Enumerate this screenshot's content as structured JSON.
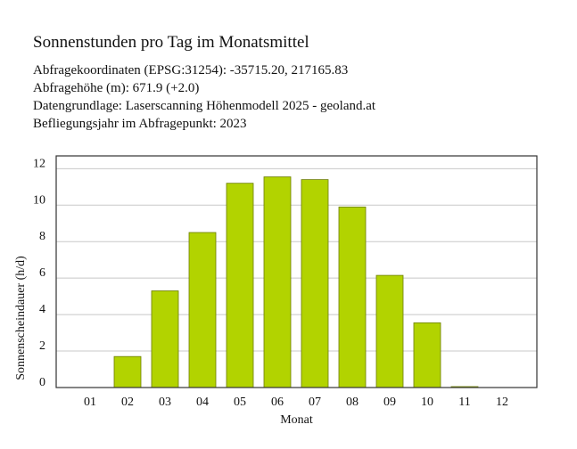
{
  "header": {
    "title": "Sonnenstunden pro Tag im Monatsmittel",
    "lines": [
      "Abfragekoordinaten (EPSG:31254): -35715.20, 217165.83",
      "Abfragehöhe (m): 671.9 (+2.0)",
      "Datengrundlage: Laserscanning Höhenmodell 2025 - geoland.at",
      "Befliegungsjahr im Abfragepunkt: 2023"
    ]
  },
  "chart_data": {
    "type": "bar",
    "title": "Sonnenstunden pro Tag im Monatsmittel",
    "xlabel": "Monat",
    "ylabel": "Sonnenscheindauer (h/d)",
    "categories": [
      "01",
      "02",
      "03",
      "04",
      "05",
      "06",
      "07",
      "08",
      "09",
      "10",
      "11",
      "12"
    ],
    "values": [
      0,
      1.7,
      5.3,
      8.5,
      11.2,
      11.55,
      11.4,
      9.9,
      6.15,
      3.55,
      0.05,
      0
    ],
    "yticks": [
      "0",
      "2",
      "4",
      "6",
      "8",
      "10",
      "12"
    ],
    "ylim": [
      0,
      12.7
    ],
    "grid": true,
    "colors": {
      "bar": "#b2d300",
      "bar_edge": "#6b7d00",
      "grid": "#c8c8c8",
      "frame": "#333333"
    }
  }
}
